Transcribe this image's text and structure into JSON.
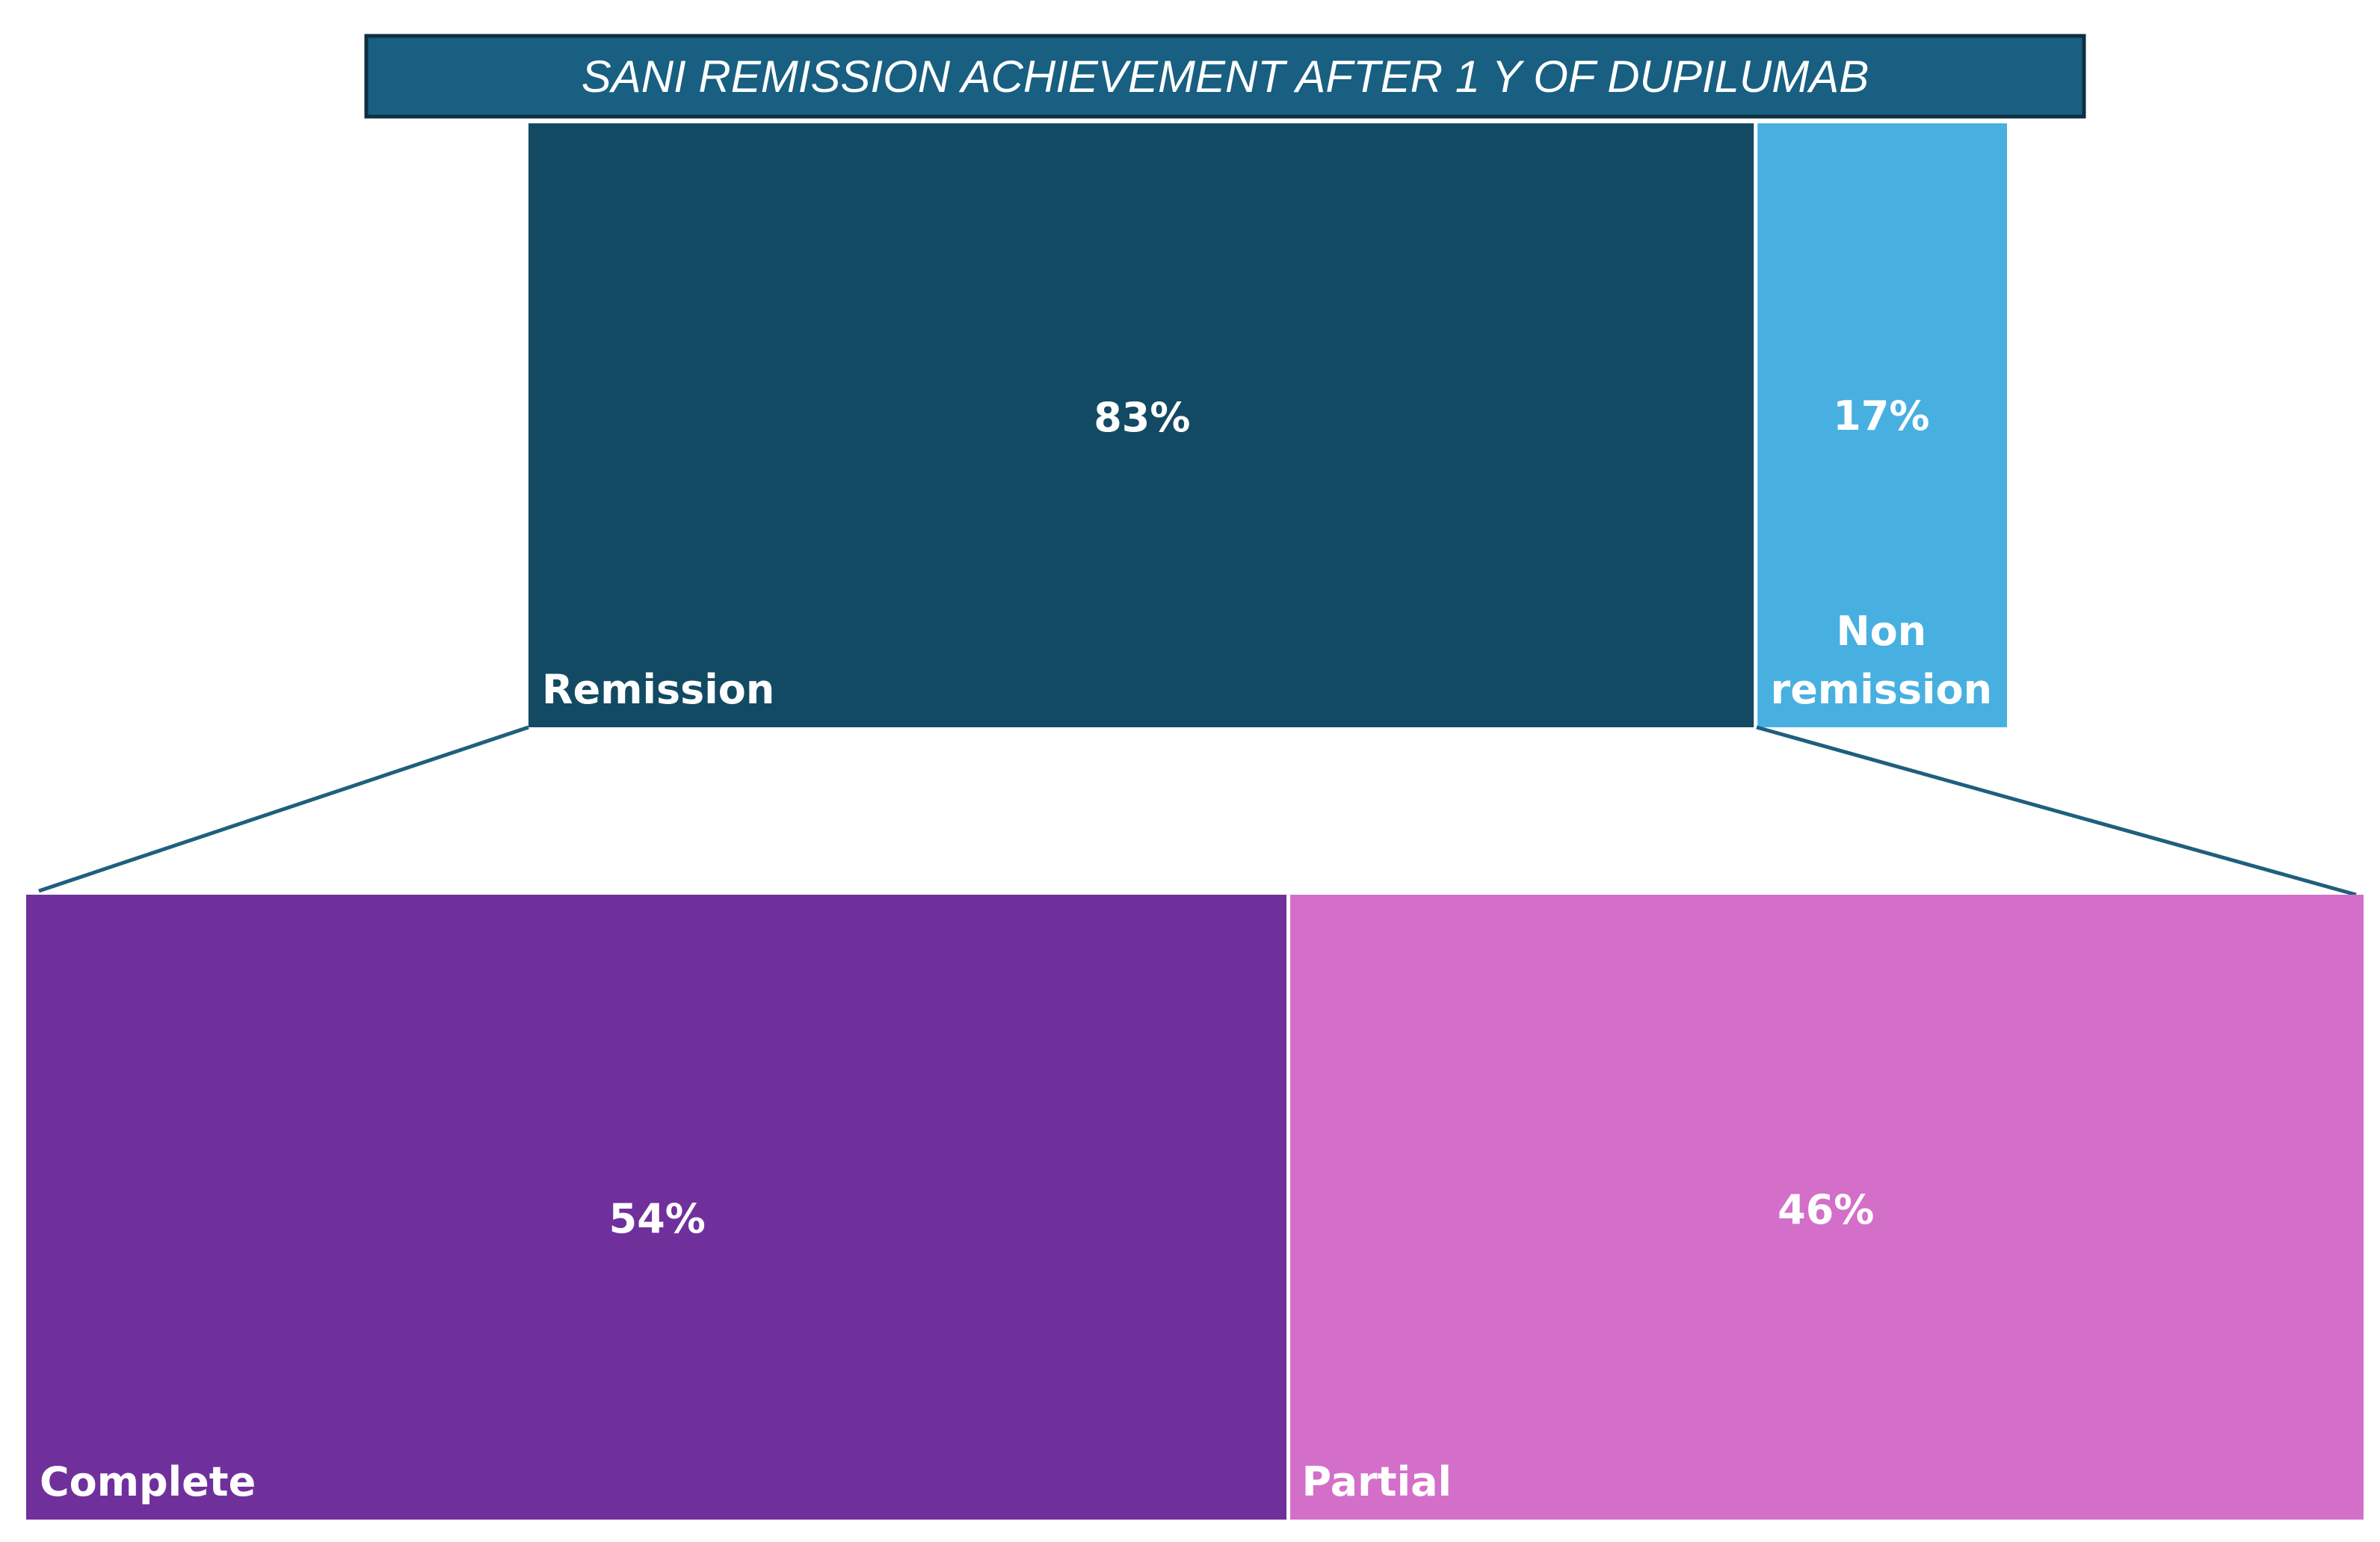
{
  "chart_data": {
    "type": "treemap",
    "title": "SANI REMISSION ACHIEVEMENT AFTER 1 Y OF DUPILUMAB",
    "levels": [
      {
        "name": "overall",
        "segments": [
          {
            "key": "remission",
            "label": "Remission",
            "value": 83,
            "value_label": "83%",
            "color": "#134a63"
          },
          {
            "key": "non_remission",
            "label_lines": [
              "Non",
              "remission"
            ],
            "value": 17,
            "value_label": "17%",
            "color": "#47b0e0"
          }
        ]
      },
      {
        "name": "remission_breakdown",
        "parent": "remission",
        "segments": [
          {
            "key": "complete",
            "label": "Complete",
            "value": 54,
            "value_label": "54%",
            "color": "#70309c"
          },
          {
            "key": "partial",
            "label": "Partial",
            "value": 46,
            "value_label": "46%",
            "color": "#d46fc9"
          }
        ]
      }
    ],
    "colors": {
      "title_bg": "#185f82",
      "title_border": "#0e2f40",
      "connector": "#1f5f7e",
      "divider": "#ffffff"
    }
  }
}
